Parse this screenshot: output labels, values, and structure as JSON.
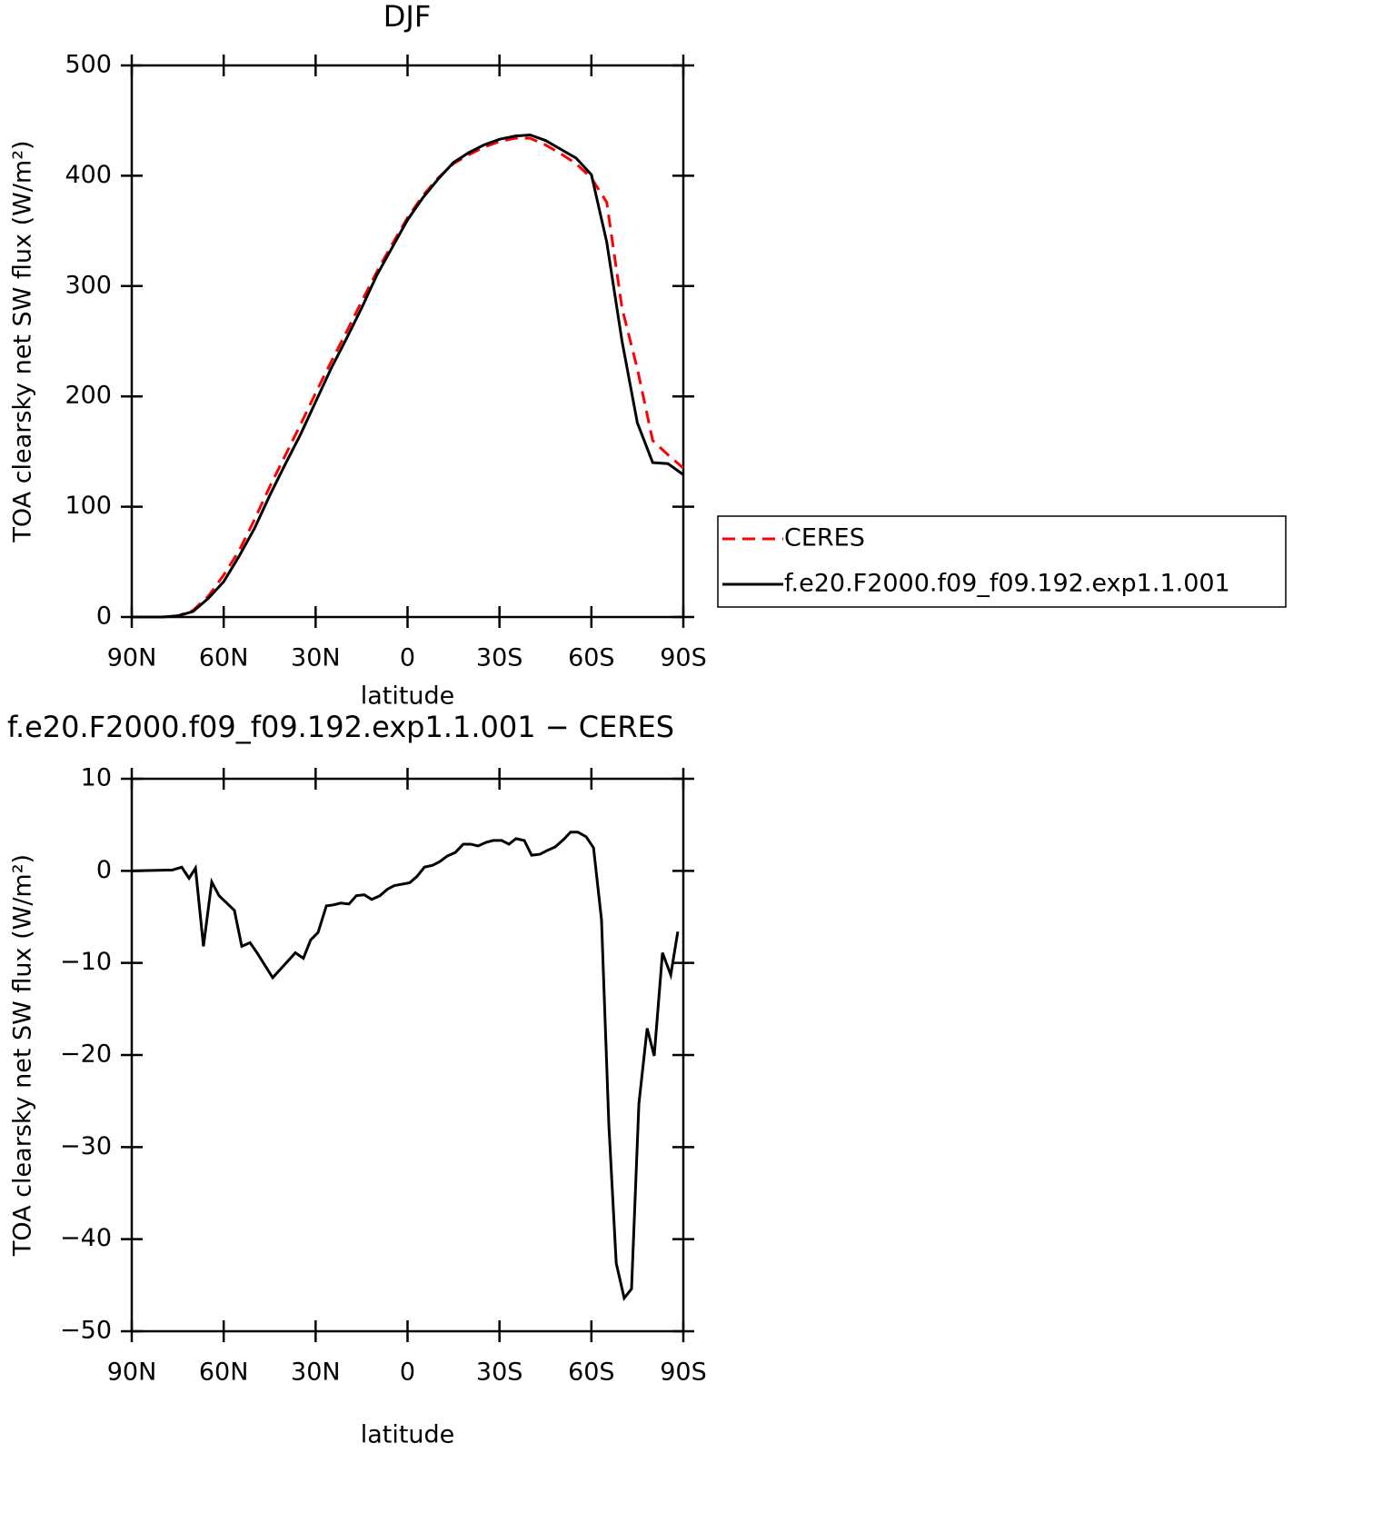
{
  "chart_data": [
    {
      "type": "line",
      "title": "DJF",
      "x_label": "latitude",
      "y_label": "TOA clearsky net SW flux (W/m²)",
      "x": [
        90,
        85,
        80,
        75,
        70,
        65,
        60,
        55,
        50,
        45,
        40,
        35,
        30,
        25,
        20,
        15,
        10,
        5,
        0,
        -5,
        -10,
        -15,
        -20,
        -25,
        -30,
        -35,
        -40,
        -45,
        -50,
        -55,
        -60,
        -65,
        -70,
        -75,
        -80,
        -85,
        -90
      ],
      "series": [
        {
          "name": "CERES",
          "color": "#ff0000",
          "dash": "dashed",
          "values": [
            0,
            0,
            0,
            1,
            6,
            19,
            38,
            60,
            88,
            118,
            146,
            174,
            203,
            231,
            258,
            286,
            313,
            338,
            362,
            382,
            398,
            411,
            419,
            426,
            431,
            434,
            434,
            428,
            420,
            411,
            398,
            376,
            280,
            225,
            160,
            147,
            135
          ]
        },
        {
          "name": "f.e20.F2000.f09_f09.192.exp1.1.001",
          "color": "#000000",
          "dash": "solid",
          "values": [
            0,
            0,
            0,
            1,
            5,
            17,
            32,
            55,
            80,
            110,
            138,
            165,
            195,
            225,
            252,
            280,
            310,
            335,
            360,
            380,
            397,
            412,
            421,
            428,
            433,
            436,
            437,
            432,
            424,
            416,
            401,
            340,
            250,
            176,
            140,
            139,
            129
          ]
        }
      ],
      "xlim": [
        90,
        -90
      ],
      "xticks": [
        {
          "value": 90,
          "label": "90N"
        },
        {
          "value": 60,
          "label": "60N"
        },
        {
          "value": 30,
          "label": "30N"
        },
        0,
        {
          "value": -30,
          "label": "30S"
        },
        {
          "value": -60,
          "label": "60S"
        },
        {
          "value": -90,
          "label": "90S"
        }
      ],
      "ylim": [
        0,
        500
      ],
      "yticks": [
        0,
        100,
        200,
        300,
        400,
        500
      ],
      "legend": "right"
    },
    {
      "type": "line",
      "title": "f.e20.F2000.f09_f09.192.exp1.1.001 − CERES",
      "x_label": "latitude",
      "y_label": "TOA clearsky net SW flux (W/m²)",
      "x": [
        90,
        76.7,
        73.7,
        71.3,
        69.2,
        66.6,
        63.9,
        61.5,
        56.5,
        54.1,
        51.4,
        49.1,
        44.0,
        36.6,
        34.0,
        31.6,
        29.2,
        26.5,
        24.2,
        21.8,
        19.1,
        16.7,
        14.1,
        11.7,
        9.0,
        6.6,
        4.3,
        -0.7,
        -3.1,
        -5.5,
        -8.2,
        -10.5,
        -12.9,
        -15.6,
        -18.2,
        -20.6,
        -23.0,
        -25.7,
        -28.0,
        -30.7,
        -33.1,
        -35.4,
        -38.1,
        -40.5,
        -43.2,
        -45.5,
        -48.2,
        -50.9,
        -53.2,
        -55.6,
        -58.3,
        -60.7,
        -63.3,
        -65.7,
        -68.1,
        -70.7,
        -73.1,
        -75.5,
        -78.2,
        -80.5,
        -83.2,
        -85.9,
        -88.2
      ],
      "series": [
        {
          "color": "#000000",
          "dash": "solid",
          "values": [
            0,
            0.1,
            0.4,
            -0.8,
            0.3,
            -8.2,
            -1.2,
            -2.7,
            -4.3,
            -8.2,
            -7.8,
            -8.9,
            -11.6,
            -8.9,
            -9.5,
            -7.5,
            -6.7,
            -3.8,
            -3.7,
            -3.5,
            -3.6,
            -2.7,
            -2.6,
            -3.1,
            -2.7,
            -2.0,
            -1.6,
            -1.3,
            -0.6,
            0.4,
            0.6,
            1.0,
            1.6,
            2.0,
            2.9,
            2.9,
            2.7,
            3.1,
            3.3,
            3.3,
            2.9,
            3.5,
            3.3,
            1.7,
            1.8,
            2.2,
            2.6,
            3.4,
            4.2,
            4.2,
            3.7,
            2.5,
            -5.3,
            -27.6,
            -42.6,
            -46.4,
            -45.4,
            -25.3,
            -17.1,
            -20.1,
            -8.9,
            -11.3,
            -6.6
          ]
        }
      ],
      "xlim": [
        90,
        -90
      ],
      "xticks": [
        {
          "value": 90,
          "label": "90N"
        },
        {
          "value": 60,
          "label": "60N"
        },
        {
          "value": 30,
          "label": "30N"
        },
        0,
        {
          "value": -30,
          "label": "30S"
        },
        {
          "value": -60,
          "label": "60S"
        },
        {
          "value": -90,
          "label": "90S"
        }
      ],
      "ylim": [
        -50,
        10
      ],
      "yticks": [
        {
          "value": -50,
          "label": "−50"
        },
        {
          "value": -40,
          "label": "−40"
        },
        {
          "value": -30,
          "label": "−30"
        },
        {
          "value": -20,
          "label": "−20"
        },
        {
          "value": -10,
          "label": "−10"
        },
        0,
        10
      ]
    }
  ]
}
